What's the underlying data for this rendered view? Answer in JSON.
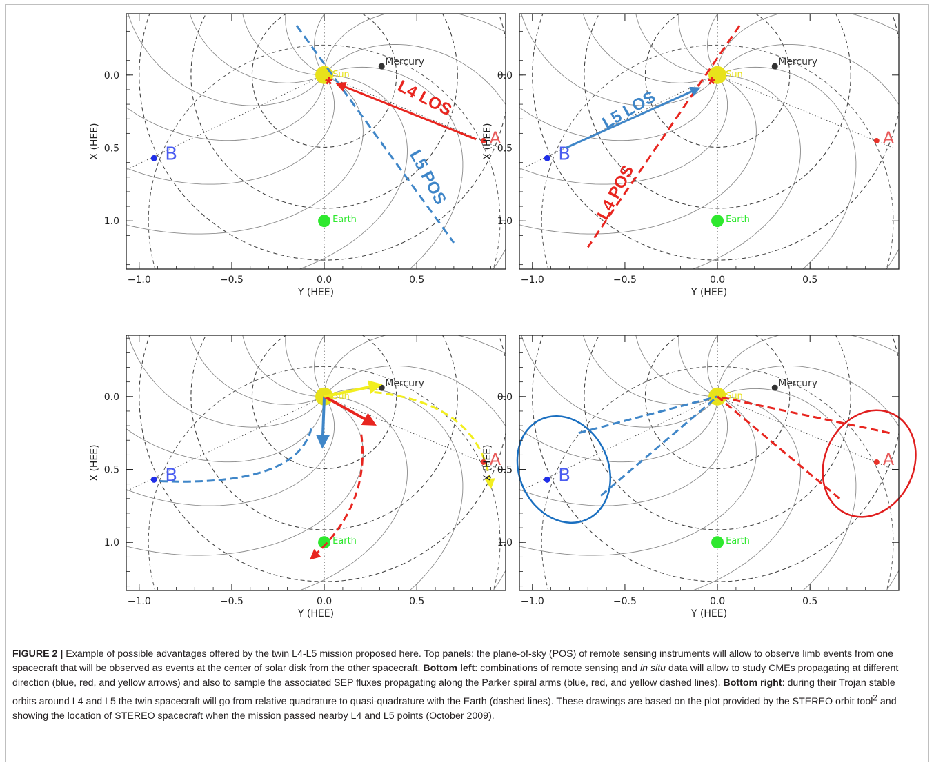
{
  "figure": {
    "label": "FIGURE 2 |",
    "caption_parts": [
      {
        "t": "Example of possible advantages offered by the twin L4-L5 mission proposed here. Top panels: the plane-of-sky (POS) of remote sensing instruments will allow to observe limb events from one spacecraft that will be observed as events at the center of solar disk from the other spacecraft. ",
        "s": ""
      },
      {
        "t": "Bottom left",
        "s": "b"
      },
      {
        "t": ": combinations of remote sensing and ",
        "s": ""
      },
      {
        "t": "in situ",
        "s": "i"
      },
      {
        "t": " data will allow to study CMEs propagating at different direction (blue, red, and yellow arrows) and also to sample the associated SEP fluxes propagating along the Parker spiral arms (blue, red, and yellow dashed lines). ",
        "s": ""
      },
      {
        "t": "Bottom right",
        "s": "b"
      },
      {
        "t": ": during their Trojan stable orbits around L4 and L5 the twin spacecraft will go from relative quadrature to quasi-quadrature with the Earth (dashed lines). These drawings are based on the plot provided by the STEREO orbit tool",
        "s": ""
      },
      {
        "t": "2",
        "s": "sup"
      },
      {
        "t": " and showing the location of STEREO spacecraft when the mission passed nearby L4 and L5 points (October 2009).",
        "s": ""
      }
    ]
  },
  "axes": {
    "xlabel": "Y (HEE)",
    "ylabel": "X (HEE)",
    "xticks": [
      "−1.0",
      "−0.5",
      "0.0",
      "0.5"
    ],
    "yticks": [
      "0.0",
      "0.5",
      "1.0"
    ],
    "xlim": [
      -1.07,
      0.98
    ],
    "ylim": [
      -0.42,
      1.33
    ]
  },
  "bodies": {
    "sun": "Sun",
    "mercury": "Mercury",
    "earth": "Earth",
    "stereo_a": "A",
    "stereo_b": "B"
  },
  "annotations": {
    "l4_los": "L4 LOS",
    "l5_pos": "L5 POS",
    "l5_los": "L5 LOS",
    "l4_pos": "L4 POS"
  },
  "colors": {
    "sun": "#e8e21b",
    "earth": "#2ee82e",
    "mercury": "#333333",
    "stereo_a": "#e8322a",
    "stereo_b": "#1f2ee8",
    "red": "#e8251f",
    "blue": "#3f86c8",
    "yellow": "#f2ee1f",
    "ellipse_blue": "#1a6fc0",
    "ellipse_red": "#e01e1e"
  },
  "chart_data": [
    {
      "type": "scatter",
      "panel": "top-left",
      "xlabel": "Y (HEE)",
      "ylabel": "X (HEE)",
      "xlim": [
        -1.07,
        0.98
      ],
      "ylim": [
        -0.42,
        1.33
      ],
      "points": [
        {
          "name": "Sun",
          "x": 0.0,
          "y": 0.0
        },
        {
          "name": "Mercury",
          "x": 0.31,
          "y": -0.06
        },
        {
          "name": "Earth",
          "x": 0.0,
          "y": 1.0
        },
        {
          "name": "A",
          "x": 0.86,
          "y": 0.45
        },
        {
          "name": "B",
          "x": -0.92,
          "y": 0.57
        }
      ],
      "annotations": [
        "L4 LOS",
        "L5 POS"
      ]
    },
    {
      "type": "scatter",
      "panel": "top-right",
      "xlabel": "Y (HEE)",
      "ylabel": "X (HEE)",
      "xlim": [
        -1.07,
        0.98
      ],
      "ylim": [
        -0.42,
        1.33
      ],
      "points": [
        {
          "name": "Sun",
          "x": 0.0,
          "y": 0.0
        },
        {
          "name": "Mercury",
          "x": 0.31,
          "y": -0.06
        },
        {
          "name": "Earth",
          "x": 0.0,
          "y": 1.0
        },
        {
          "name": "A",
          "x": 0.86,
          "y": 0.45
        },
        {
          "name": "B",
          "x": -0.92,
          "y": 0.57
        }
      ],
      "annotations": [
        "L5 LOS",
        "L4 POS"
      ]
    },
    {
      "type": "scatter",
      "panel": "bottom-left",
      "xlabel": "Y (HEE)",
      "ylabel": "X (HEE)",
      "xlim": [
        -1.07,
        0.98
      ],
      "ylim": [
        -0.42,
        1.33
      ],
      "points": [
        {
          "name": "Sun",
          "x": 0.0,
          "y": 0.0
        },
        {
          "name": "Mercury",
          "x": 0.31,
          "y": -0.06
        },
        {
          "name": "Earth",
          "x": 0.0,
          "y": 1.0
        },
        {
          "name": "A",
          "x": 0.86,
          "y": 0.45
        },
        {
          "name": "B",
          "x": -0.92,
          "y": 0.57
        }
      ]
    },
    {
      "type": "scatter",
      "panel": "bottom-right",
      "xlabel": "Y (HEE)",
      "ylabel": "X (HEE)",
      "xlim": [
        -1.07,
        0.98
      ],
      "ylim": [
        -0.42,
        1.33
      ],
      "points": [
        {
          "name": "Sun",
          "x": 0.0,
          "y": 0.0
        },
        {
          "name": "Mercury",
          "x": 0.31,
          "y": -0.06
        },
        {
          "name": "Earth",
          "x": 0.0,
          "y": 1.0
        },
        {
          "name": "A",
          "x": 0.86,
          "y": 0.45
        },
        {
          "name": "B",
          "x": -0.92,
          "y": 0.57
        }
      ]
    }
  ]
}
